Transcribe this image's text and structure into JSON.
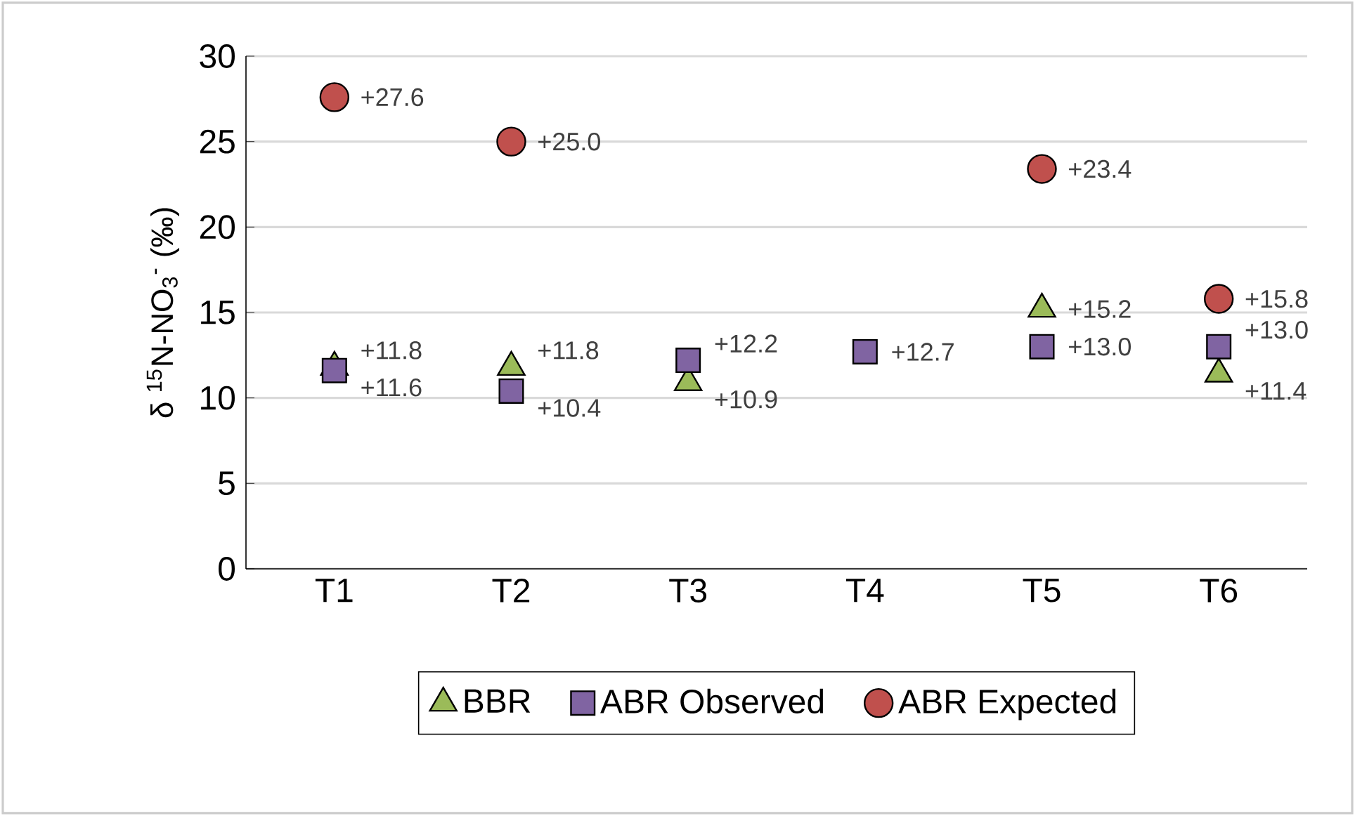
{
  "chart_data": {
    "type": "scatter",
    "ylabel": "δ $^{15}$N-NO$_{3}$$^{-}$ (‰)",
    "categories": [
      "T1",
      "T2",
      "T3",
      "T4",
      "T5",
      "T6"
    ],
    "series": [
      {
        "name": "BBR",
        "color": "#9bbb59",
        "marker": "triangle",
        "values": [
          11.8,
          11.8,
          10.9,
          null,
          15.2,
          11.4
        ],
        "value_labels": [
          "+11.8",
          "+11.8",
          "+10.9",
          null,
          "+15.2",
          "+11.4"
        ]
      },
      {
        "name": "ABR Observed",
        "color": "#8064a2",
        "marker": "square",
        "values": [
          11.6,
          10.4,
          12.2,
          12.7,
          13.0,
          13.0
        ],
        "value_labels": [
          "+11.6",
          "+10.4",
          "+12.2",
          "+12.7",
          "+13.0",
          "+13.0"
        ]
      },
      {
        "name": "ABR Expected",
        "color": "#c0504d",
        "marker": "circle",
        "values": [
          27.6,
          25.0,
          null,
          null,
          23.4,
          15.8
        ],
        "value_labels": [
          "+27.6",
          "+25.0",
          null,
          null,
          "+23.4",
          "+15.8"
        ]
      }
    ],
    "ylim": [
      0,
      30
    ],
    "yticks": [
      0,
      5,
      10,
      15,
      20,
      25,
      30
    ],
    "grid": "y",
    "legend": "bottom"
  }
}
